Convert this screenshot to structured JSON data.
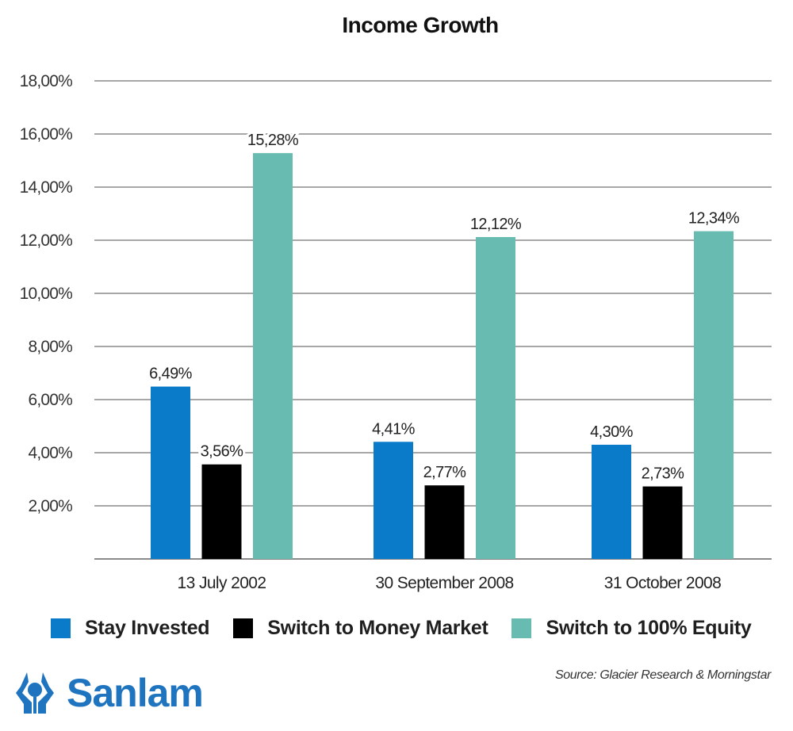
{
  "chart_data": {
    "type": "bar",
    "title": "Income Growth",
    "xlabel": "",
    "ylabel": "",
    "categories": [
      "13 July 2002",
      "30 September 2008",
      "31 October 2008"
    ],
    "series": [
      {
        "name": "Stay Invested",
        "color": "#0a7bc9",
        "values": [
          6.49,
          4.41,
          4.3
        ],
        "labels": [
          "6,49%",
          "4,41%",
          "4,30%"
        ]
      },
      {
        "name": "Switch to Money Market",
        "color": "#000000",
        "values": [
          3.56,
          2.77,
          2.73
        ],
        "labels": [
          "3,56%",
          "2,77%",
          "2,73%"
        ]
      },
      {
        "name": "Switch to 100% Equity",
        "color": "#68bbb0",
        "values": [
          15.28,
          12.12,
          12.34
        ],
        "labels": [
          "15,28%",
          "12,12%",
          "12,34%"
        ]
      }
    ],
    "ylim": [
      0,
      18
    ],
    "yticks": [
      2,
      4,
      6,
      8,
      10,
      12,
      14,
      16,
      18
    ],
    "ytick_labels": [
      "2,00%",
      "4,00%",
      "6,00%",
      "8,00%",
      "10,00%",
      "12,00%",
      "14,00%",
      "16,00%",
      "18,00%"
    ],
    "grid": true,
    "legend_position": "bottom"
  },
  "source": "Source: Glacier Research & Morningstar",
  "brand": {
    "name": "Sanlam",
    "color": "#1f74c0"
  }
}
